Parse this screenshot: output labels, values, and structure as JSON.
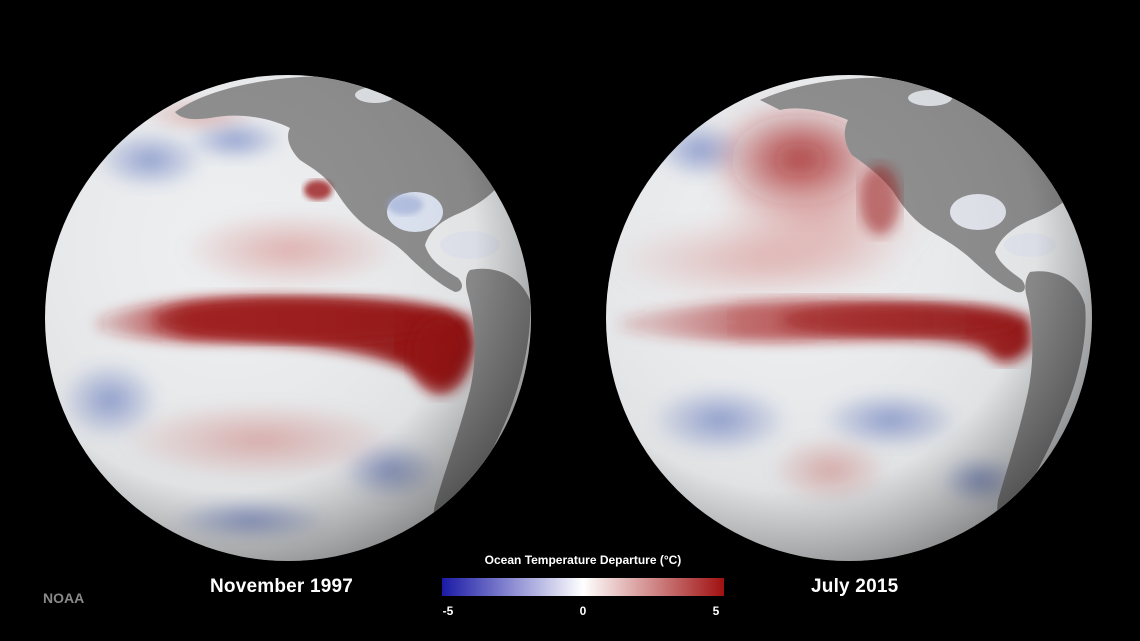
{
  "panels": [
    {
      "caption": "November 1997"
    },
    {
      "caption": "July 2015"
    }
  ],
  "legend": {
    "title": "Ocean Temperature Departure (°C)",
    "min_label": "-5",
    "mid_label": "0",
    "max_label": "5",
    "range": [
      -5,
      5
    ],
    "colors": [
      "#1a1aa6",
      "#ffffff",
      "#a01010"
    ]
  },
  "credit": "NOAA",
  "colors": {
    "land": "#8e8e8e",
    "ocean_neutral": "#eceef0",
    "warm_anomaly": "#a31818",
    "cool_anomaly": "#4a63b8",
    "background": "#000000"
  }
}
